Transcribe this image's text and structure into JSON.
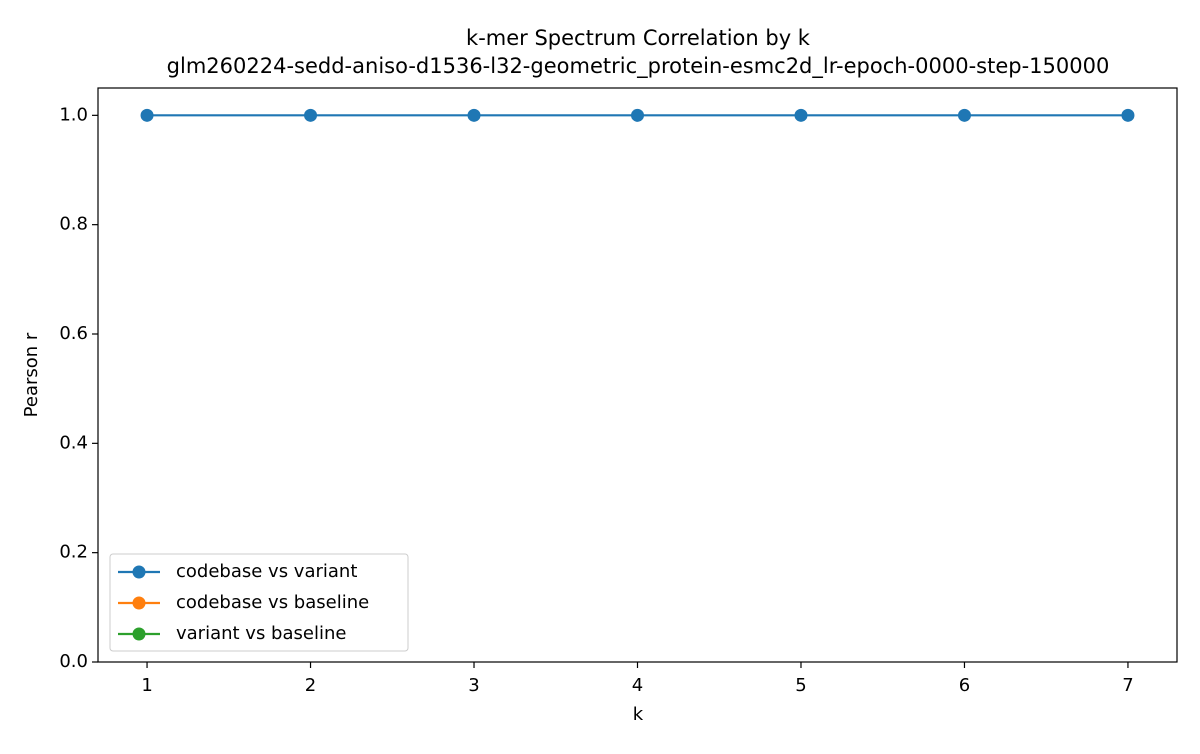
{
  "chart_data": {
    "type": "line",
    "title": "k-mer Spectrum Correlation by k",
    "subtitle": "glm260224-sedd-aniso-d1536-l32-geometric_protein-esmc2d_lr-epoch-0000-step-150000",
    "x_label": "k",
    "y_label": "Pearson r",
    "x": [
      1,
      2,
      3,
      4,
      5,
      6,
      7
    ],
    "series": [
      {
        "name": "codebase vs variant",
        "color": "#1f77b4",
        "values": [
          1.0,
          1.0,
          1.0,
          1.0,
          1.0,
          1.0,
          1.0
        ]
      },
      {
        "name": "codebase vs baseline",
        "color": "#ff7f0e",
        "values": [
          null,
          null,
          null,
          null,
          null,
          null,
          null
        ]
      },
      {
        "name": "variant vs baseline",
        "color": "#2ca02c",
        "values": [
          null,
          null,
          null,
          null,
          null,
          null,
          null
        ]
      }
    ],
    "xlim": [
      0.7,
      7.3
    ],
    "xticks": [
      1,
      2,
      3,
      4,
      5,
      6,
      7
    ],
    "ylim": [
      0,
      1.05
    ],
    "yticks": [
      {
        "value": 0,
        "label": "0.0"
      },
      0.2,
      0.4,
      0.6,
      0.8,
      {
        "value": 1,
        "label": "1.0"
      }
    ],
    "grid": false,
    "legend": "lower left"
  }
}
